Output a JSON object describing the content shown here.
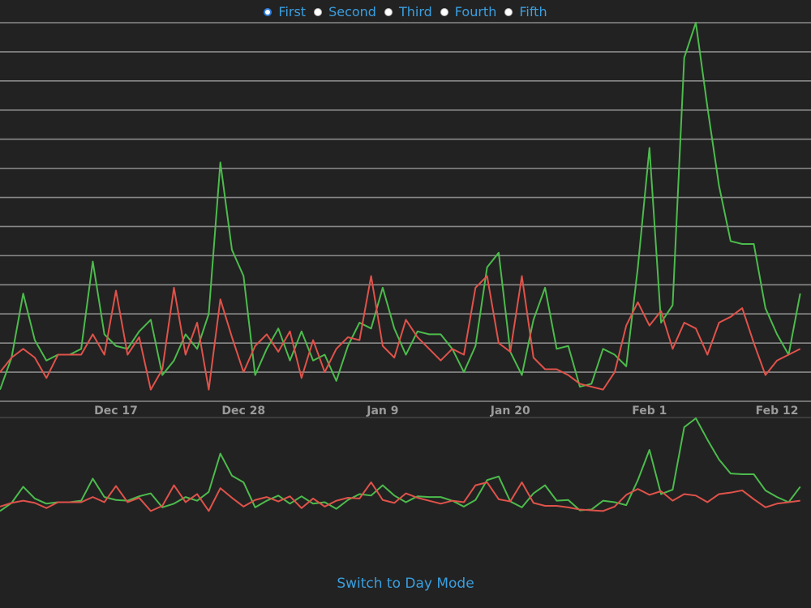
{
  "series_selector": {
    "options": [
      {
        "label": "First",
        "checked": true
      },
      {
        "label": "Second",
        "checked": false
      },
      {
        "label": "Third",
        "checked": false
      },
      {
        "label": "Fourth",
        "checked": false
      },
      {
        "label": "Fifth",
        "checked": false
      }
    ]
  },
  "footer": {
    "mode_link": "Switch to Day Mode"
  },
  "colors": {
    "background": "#222222",
    "grid": "#8a8a8a",
    "green_series": "#4cbb4c",
    "red_series": "#e0524a",
    "axis_text": "#9a9a9a",
    "link": "#3a9fe0"
  },
  "chart_data": {
    "type": "line",
    "x_tick_labels": [
      "Dec 17",
      "Dec 28",
      "Jan 9",
      "Jan 20",
      "Feb 1",
      "Feb 12"
    ],
    "x_tick_indices": [
      10,
      21,
      33,
      44,
      56,
      67
    ],
    "ylim": [
      0,
      13
    ],
    "grid": true,
    "y_tick_labels_shown": false,
    "overview_navigator": true,
    "series": [
      {
        "color": "#4cbb4c",
        "values": [
          0.4,
          1.5,
          3.7,
          2.1,
          1.4,
          1.6,
          1.6,
          1.8,
          4.8,
          2.3,
          1.9,
          1.8,
          2.4,
          2.8,
          0.9,
          1.4,
          2.3,
          1.8,
          3.0,
          8.2,
          5.2,
          4.3,
          0.9,
          1.8,
          2.5,
          1.4,
          2.4,
          1.4,
          1.6,
          0.7,
          1.9,
          2.7,
          2.5,
          3.9,
          2.5,
          1.6,
          2.4,
          2.3,
          2.3,
          1.8,
          1.0,
          1.9,
          4.6,
          5.1,
          1.7,
          0.9,
          2.8,
          3.9,
          1.8,
          1.9,
          0.5,
          0.6,
          1.8,
          1.6,
          1.2,
          4.6,
          8.7,
          2.7,
          3.3,
          11.8,
          13.0,
          10.1,
          7.4,
          5.5,
          5.4,
          5.4,
          3.2,
          2.3,
          1.6,
          3.7
        ]
      },
      {
        "color": "#e0524a",
        "values": [
          1.0,
          1.5,
          1.8,
          1.5,
          0.8,
          1.6,
          1.6,
          1.6,
          2.3,
          1.6,
          3.8,
          1.6,
          2.2,
          0.4,
          1.1,
          3.9,
          1.6,
          2.7,
          0.4,
          3.5,
          2.2,
          1.0,
          1.9,
          2.3,
          1.7,
          2.4,
          0.8,
          2.1,
          1.0,
          1.8,
          2.2,
          2.1,
          4.3,
          1.9,
          1.5,
          2.8,
          2.2,
          1.8,
          1.4,
          1.8,
          1.6,
          3.9,
          4.3,
          2.0,
          1.7,
          4.3,
          1.5,
          1.1,
          1.1,
          0.9,
          0.6,
          0.5,
          0.4,
          1.0,
          2.6,
          3.4,
          2.6,
          3.1,
          1.8,
          2.7,
          2.5,
          1.6,
          2.7,
          2.9,
          3.2,
          2.0,
          0.9,
          1.4,
          1.6,
          1.8
        ]
      }
    ]
  }
}
